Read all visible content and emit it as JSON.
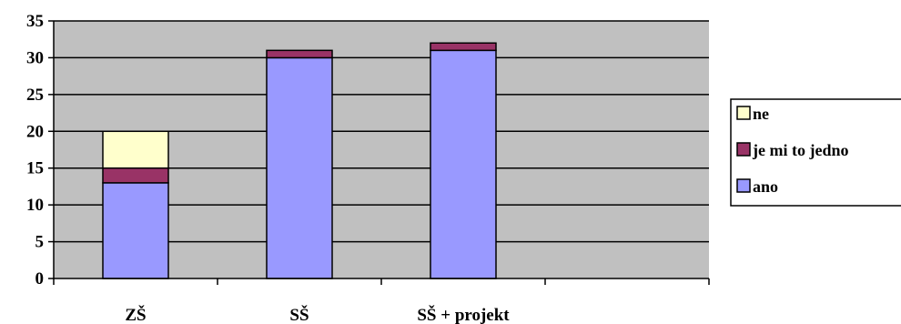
{
  "chart_data": {
    "type": "bar",
    "stacked": true,
    "categories": [
      "ZŠ",
      "SŠ",
      "SŠ + projekt",
      ""
    ],
    "series": [
      {
        "name": "ano",
        "values": [
          13,
          30,
          31,
          null
        ],
        "color": "#9999FF"
      },
      {
        "name": "je mi to jedno",
        "values": [
          2,
          1,
          1,
          null
        ],
        "color": "#993366"
      },
      {
        "name": "ne",
        "values": [
          5,
          0,
          0,
          null
        ],
        "color": "#FFFFCC"
      }
    ],
    "ylim": [
      0,
      35
    ],
    "yticks": [
      "0",
      "5",
      "10",
      "15",
      "20",
      "25",
      "30",
      "35"
    ],
    "plot_background": "#C0C0C0",
    "grid": true,
    "legend": {
      "position": "right",
      "order": [
        "ne",
        "je mi to jedno",
        "ano"
      ]
    }
  }
}
